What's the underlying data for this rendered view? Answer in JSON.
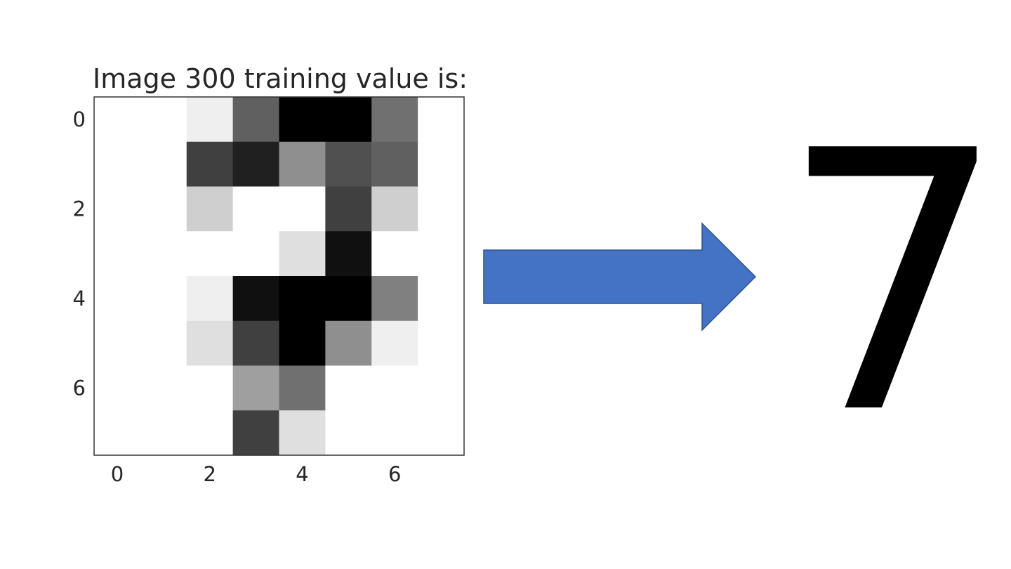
{
  "chart_data": {
    "type": "heatmap",
    "title": "Image 300 training value is:",
    "colormap": "gray_r",
    "value_range": [
      0,
      16
    ],
    "grid": false,
    "x_ticks": [
      "0",
      "2",
      "4",
      "6"
    ],
    "y_ticks": [
      "0",
      "2",
      "4",
      "6"
    ],
    "values": [
      [
        0,
        0,
        1,
        10,
        16,
        16,
        9,
        0
      ],
      [
        0,
        0,
        12,
        14,
        7,
        11,
        10,
        0
      ],
      [
        0,
        0,
        3,
        0,
        0,
        12,
        3,
        0
      ],
      [
        0,
        0,
        0,
        0,
        2,
        15,
        0,
        0
      ],
      [
        0,
        0,
        1,
        15,
        16,
        16,
        8,
        0
      ],
      [
        0,
        0,
        2,
        12,
        16,
        7,
        1,
        0
      ],
      [
        0,
        0,
        0,
        6,
        9,
        0,
        0,
        0
      ],
      [
        0,
        0,
        0,
        12,
        2,
        0,
        0,
        0
      ]
    ]
  },
  "arrow": {
    "color": "#4472C4",
    "border": "#2F528F"
  },
  "prediction": {
    "value": "7"
  }
}
